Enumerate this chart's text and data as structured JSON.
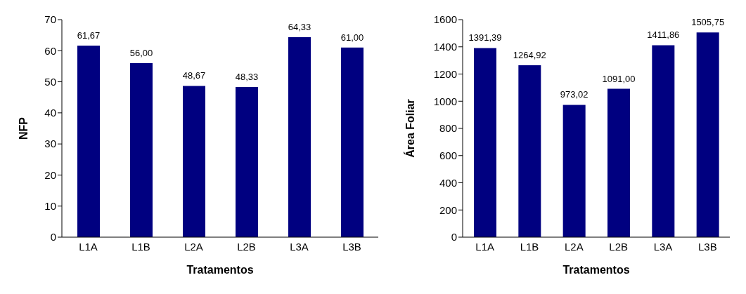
{
  "chart_data": [
    {
      "type": "bar",
      "categories": [
        "L1A",
        "L1B",
        "L2A",
        "L2B",
        "L3A",
        "L3B"
      ],
      "values": [
        61.67,
        56.0,
        48.67,
        48.33,
        64.33,
        61.0
      ],
      "value_labels": [
        "61,67",
        "56,00",
        "48,67",
        "48,33",
        "64,33",
        "61,00"
      ],
      "color": "#000080",
      "xlabel": "Tratamentos",
      "ylabel": "NFP",
      "ylim": [
        0,
        70
      ],
      "yticks": [
        0,
        10,
        20,
        30,
        40,
        50,
        60,
        70
      ],
      "grid": false,
      "legend": false
    },
    {
      "type": "bar",
      "categories": [
        "L1A",
        "L1B",
        "L2A",
        "L2B",
        "L3A",
        "L3B"
      ],
      "values": [
        1391.39,
        1264.92,
        973.02,
        1091.0,
        1411.86,
        1505.75
      ],
      "value_labels": [
        "1391,39",
        "1264,92",
        "973,02",
        "1091,00",
        "1411,86",
        "1505,75"
      ],
      "color": "#000080",
      "xlabel": "Tratamentos",
      "ylabel": "Área Foliar",
      "ylim": [
        0,
        1600
      ],
      "yticks": [
        0,
        200,
        400,
        600,
        800,
        1000,
        1200,
        1400,
        1600
      ],
      "grid": false,
      "legend": false
    }
  ]
}
